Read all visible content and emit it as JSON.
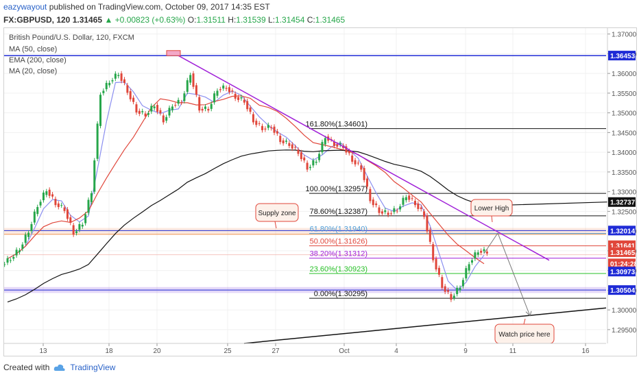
{
  "header": {
    "author": "eazywayout",
    "published_text": " published on TradingView.com, October 09, 2017 14:35 EST",
    "symbol": "FX:GBPUSD, 120",
    "last": "1.31465",
    "change_arrow": "▲",
    "change": "+0.00823 (+0.63%)",
    "o_label": "O:",
    "o": "1.31511",
    "h_label": "H:",
    "h": "1.31539",
    "l_label": "L:",
    "l": "1.31454",
    "c_label": "C:",
    "c": "1.31465"
  },
  "legend": {
    "title": "British Pound/U.S. Dollar, 120, FXCM",
    "ma50": "MA (50, close)",
    "ema200": "EMA (200, close)",
    "ma20": "MA (20, close)"
  },
  "footer": {
    "created_with": "Created with",
    "brand": "TradingView"
  },
  "colors": {
    "candle_up": "#26a64a",
    "candle_down": "#e0463a",
    "ma50": "#e0463a",
    "ema200": "#111111",
    "ma20": "#8a8ef0",
    "trendline": "#a020d8",
    "blue_line": "#1f2bd6",
    "accent": "#2962c8"
  },
  "chart_data": {
    "type": "candlestick",
    "symbol": "GBPUSD",
    "timeframe": "120",
    "ylim": [
      1.2915,
      1.3715
    ],
    "price_ticks": [
      "1.37000",
      "1.36500",
      "1.36000",
      "1.35500",
      "1.35000",
      "1.34500",
      "1.34000",
      "1.33500",
      "1.33000",
      "1.32500",
      "1.32000",
      "1.31500",
      "1.31000",
      "1.30500",
      "1.30000",
      "1.29500"
    ],
    "date_labels": [
      "13",
      "18",
      "20",
      "25",
      "27",
      "Oct",
      "4",
      "9",
      "11",
      "16"
    ],
    "close_path": [
      1.313,
      1.3155,
      1.32,
      1.3265,
      1.3305,
      1.327,
      1.3255,
      1.3195,
      1.322,
      1.33,
      1.355,
      1.358,
      1.36,
      1.3555,
      1.3505,
      1.3495,
      1.352,
      1.348,
      1.352,
      1.353,
      1.36,
      1.351,
      1.351,
      1.356,
      1.3565,
      1.354,
      1.353,
      1.348,
      1.346,
      1.3465,
      1.343,
      1.342,
      1.34,
      1.336,
      1.338,
      1.344,
      1.342,
      1.3415,
      1.338,
      1.336,
      1.328,
      1.325,
      1.3245,
      1.3255,
      1.329,
      1.327,
      1.324,
      1.313,
      1.306,
      1.303,
      1.306,
      1.312,
      1.315,
      1.3147
    ],
    "price_badges": [
      {
        "label": "1.36453",
        "price": 1.36453,
        "color": "#1f2bd6"
      },
      {
        "label": "1.32737",
        "price": 1.32737,
        "color": "#111111"
      },
      {
        "label": "1.32014",
        "price": 1.32014,
        "color": "#1f2bd6"
      },
      {
        "label": "1.31641",
        "price": 1.31641,
        "color": "#e0463a"
      },
      {
        "label": "1.31465",
        "price": 1.31465,
        "color": "#e0463a"
      },
      {
        "label": "01:24:28",
        "price": 1.3118,
        "color": "#e0463a"
      },
      {
        "label": "1.30973",
        "price": 1.30973,
        "color": "#1f2bd6"
      },
      {
        "label": "1.30504",
        "price": 1.30504,
        "color": "#1f2bd6"
      }
    ],
    "fib_levels": [
      {
        "label": "161.80%(1.34601)",
        "price": 1.34601,
        "color": "#111111"
      },
      {
        "label": "100.00%(1.32957)",
        "price": 1.32957,
        "color": "#111111"
      },
      {
        "label": "78.60%(1.32387)",
        "price": 1.32387,
        "color": "#111111"
      },
      {
        "label": "61.80%(1.31940)",
        "price": 1.3194,
        "color": "#4a9bd8"
      },
      {
        "label": "50.00%(1.31626)",
        "price": 1.31626,
        "color": "#e0463a"
      },
      {
        "label": "38.20%(1.31312)",
        "price": 1.31312,
        "color": "#a020d8"
      },
      {
        "label": "23.60%(1.30923)",
        "price": 1.30923,
        "color": "#26c026"
      },
      {
        "label": "0.00%(1.30295)",
        "price": 1.30295,
        "color": "#111111"
      }
    ],
    "annotations": [
      "Supply zone",
      "Lower High",
      "Watch price here"
    ],
    "indicators": [
      "MA (50, close)",
      "EMA (200, close)",
      "MA (20, close)"
    ]
  }
}
